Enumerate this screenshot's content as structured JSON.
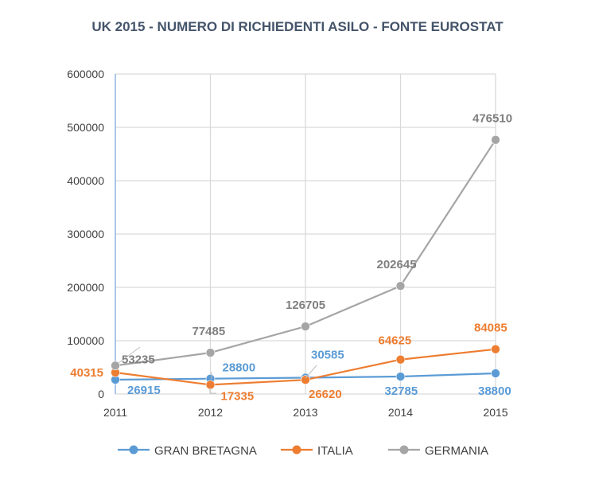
{
  "chart_data": {
    "type": "line",
    "title": "UK 2015 -  NUMERO DI RICHIEDENTI ASILO - FONTE EUROSTAT",
    "xlabel": "",
    "ylabel": "",
    "categories": [
      "2011",
      "2012",
      "2013",
      "2014",
      "2015"
    ],
    "ylim": [
      0,
      600000
    ],
    "yticks": [
      0,
      100000,
      200000,
      300000,
      400000,
      500000,
      600000
    ],
    "grid": true,
    "legend_position": "bottom",
    "series": [
      {
        "name": "GRAN BRETAGNA",
        "color": "#5b9bd5",
        "values": [
          26915,
          28800,
          30585,
          32785,
          38800
        ]
      },
      {
        "name": "ITALIA",
        "color": "#ed7d31",
        "values": [
          40315,
          17335,
          26620,
          64625,
          84085
        ]
      },
      {
        "name": "GERMANIA",
        "color": "#a5a5a5",
        "values": [
          53235,
          77485,
          126705,
          202645,
          476510
        ]
      }
    ]
  }
}
